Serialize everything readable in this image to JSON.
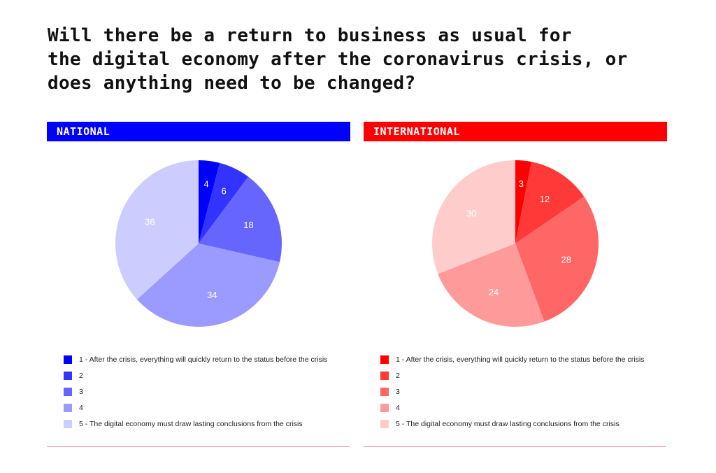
{
  "title": "Will there be a return to business as usual for\nthe digital economy after the coronavirus crisis, or\ndoes anything need to be changed?",
  "chart_data": [
    {
      "type": "pie",
      "title": "NATIONAL",
      "accent": "#0000ff",
      "categories": [
        "1 - After the crisis, everything will quickly return to the status before the crisis",
        "2",
        "3",
        "4",
        "5 -  The digital economy must draw lasting conclusions from the crisis"
      ],
      "values": [
        4,
        6,
        18,
        34,
        36
      ],
      "colors": [
        "#0000ff",
        "#3333ff",
        "#6666ff",
        "#9a9aff",
        "#ccccff"
      ]
    },
    {
      "type": "pie",
      "title": "INTERNATIONAL",
      "accent": "#ff0000",
      "categories": [
        "1 - After the crisis, everything will quickly return to the status before the crisis",
        "2",
        "3",
        "4",
        "5 -  The digital economy must draw lasting conclusions from the crisis"
      ],
      "values": [
        3,
        12,
        28,
        24,
        30
      ],
      "colors": [
        "#ff0000",
        "#ff3838",
        "#ff6666",
        "#ff9a9a",
        "#ffcccc"
      ]
    }
  ]
}
